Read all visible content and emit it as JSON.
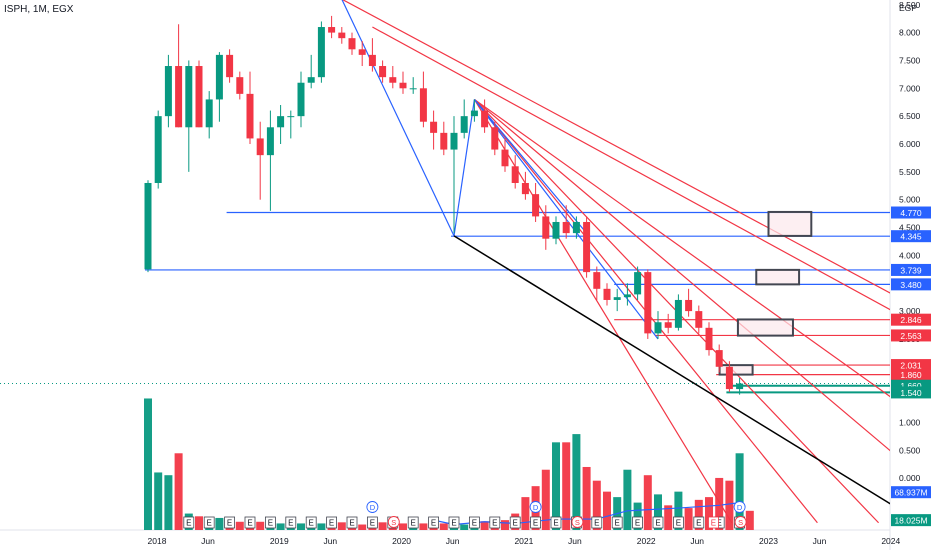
{
  "header": {
    "symbol_line": "ISPH, 1M, EGX"
  },
  "chart_data": {
    "type": "candlestick",
    "currency": "EGP",
    "price_axis_ticks": [
      "8.500",
      "8.000",
      "7.500",
      "7.000",
      "6.500",
      "6.000",
      "5.500",
      "5.000",
      "4.500",
      "4.000",
      "3.500",
      "3.000",
      "2.500",
      "2.000",
      "1.500",
      "1.000",
      "0.500",
      "0.000"
    ],
    "time_axis": [
      {
        "label": "2018",
        "t": 2018.0
      },
      {
        "label": "Jun",
        "t": 2018.417
      },
      {
        "label": "2019",
        "t": 2019.0
      },
      {
        "label": "Jun",
        "t": 2019.417
      },
      {
        "label": "2020",
        "t": 2020.0
      },
      {
        "label": "Jun",
        "t": 2020.417
      },
      {
        "label": "2021",
        "t": 2021.0
      },
      {
        "label": "Jun",
        "t": 2021.417
      },
      {
        "label": "2022",
        "t": 2022.0
      },
      {
        "label": "Jun",
        "t": 2022.417
      },
      {
        "label": "2023",
        "t": 2023.0
      },
      {
        "label": "Jun",
        "t": 2023.417
      },
      {
        "label": "2024",
        "t": 2024.0
      }
    ],
    "candles": [
      {
        "o": 3.75,
        "h": 5.35,
        "l": 3.7,
        "c": 5.3
      },
      {
        "o": 5.3,
        "h": 6.6,
        "l": 5.2,
        "c": 6.5
      },
      {
        "o": 6.5,
        "h": 7.6,
        "l": 6.3,
        "c": 7.4
      },
      {
        "o": 7.4,
        "h": 8.15,
        "l": 6.3,
        "c": 6.3
      },
      {
        "o": 6.3,
        "h": 7.5,
        "l": 5.5,
        "c": 7.4
      },
      {
        "o": 7.4,
        "h": 7.5,
        "l": 6.3,
        "c": 6.3
      },
      {
        "o": 6.3,
        "h": 6.95,
        "l": 6.1,
        "c": 6.8
      },
      {
        "o": 6.8,
        "h": 7.65,
        "l": 6.4,
        "c": 7.6
      },
      {
        "o": 7.6,
        "h": 7.7,
        "l": 7.1,
        "c": 7.2
      },
      {
        "o": 7.2,
        "h": 7.3,
        "l": 6.8,
        "c": 6.9
      },
      {
        "o": 6.9,
        "h": 7.3,
        "l": 6.0,
        "c": 6.1
      },
      {
        "o": 6.1,
        "h": 6.4,
        "l": 5.0,
        "c": 5.8
      },
      {
        "o": 5.8,
        "h": 6.6,
        "l": 4.8,
        "c": 6.3
      },
      {
        "o": 6.3,
        "h": 6.7,
        "l": 6.0,
        "c": 6.5
      },
      {
        "o": 6.5,
        "h": 6.6,
        "l": 6.1,
        "c": 6.5
      },
      {
        "o": 6.5,
        "h": 7.3,
        "l": 6.3,
        "c": 7.1
      },
      {
        "o": 7.1,
        "h": 7.6,
        "l": 7.0,
        "c": 7.2
      },
      {
        "o": 7.2,
        "h": 8.2,
        "l": 7.1,
        "c": 8.1
      },
      {
        "o": 8.1,
        "h": 8.3,
        "l": 7.9,
        "c": 8.0
      },
      {
        "o": 8.0,
        "h": 8.1,
        "l": 7.8,
        "c": 7.9
      },
      {
        "o": 7.9,
        "h": 8.0,
        "l": 7.6,
        "c": 7.7
      },
      {
        "o": 7.7,
        "h": 7.85,
        "l": 7.4,
        "c": 7.6
      },
      {
        "o": 7.6,
        "h": 7.9,
        "l": 7.3,
        "c": 7.4
      },
      {
        "o": 7.4,
        "h": 7.5,
        "l": 7.1,
        "c": 7.2
      },
      {
        "o": 7.2,
        "h": 7.4,
        "l": 7.0,
        "c": 7.1
      },
      {
        "o": 7.1,
        "h": 7.3,
        "l": 6.9,
        "c": 7.0
      },
      {
        "o": 7.0,
        "h": 7.2,
        "l": 6.9,
        "c": 7.0
      },
      {
        "o": 7.0,
        "h": 7.3,
        "l": 6.3,
        "c": 6.4
      },
      {
        "o": 6.4,
        "h": 6.6,
        "l": 5.9,
        "c": 6.2
      },
      {
        "o": 6.2,
        "h": 6.4,
        "l": 5.8,
        "c": 5.9
      },
      {
        "o": 5.9,
        "h": 6.5,
        "l": 4.4,
        "c": 6.2
      },
      {
        "o": 6.2,
        "h": 6.8,
        "l": 6.1,
        "c": 6.5
      },
      {
        "o": 6.5,
        "h": 6.8,
        "l": 6.4,
        "c": 6.6
      },
      {
        "o": 6.6,
        "h": 6.8,
        "l": 6.2,
        "c": 6.3
      },
      {
        "o": 6.3,
        "h": 6.4,
        "l": 5.8,
        "c": 5.9
      },
      {
        "o": 5.9,
        "h": 6.1,
        "l": 5.5,
        "c": 5.6
      },
      {
        "o": 5.6,
        "h": 5.8,
        "l": 5.2,
        "c": 5.3
      },
      {
        "o": 5.3,
        "h": 5.5,
        "l": 5.0,
        "c": 5.1
      },
      {
        "o": 5.1,
        "h": 5.3,
        "l": 4.6,
        "c": 4.7
      },
      {
        "o": 4.7,
        "h": 4.9,
        "l": 4.1,
        "c": 4.3
      },
      {
        "o": 4.3,
        "h": 4.7,
        "l": 4.2,
        "c": 4.6
      },
      {
        "o": 4.6,
        "h": 4.9,
        "l": 4.3,
        "c": 4.4
      },
      {
        "o": 4.4,
        "h": 4.7,
        "l": 4.3,
        "c": 4.6
      },
      {
        "o": 4.6,
        "h": 4.7,
        "l": 3.6,
        "c": 3.7
      },
      {
        "o": 3.7,
        "h": 3.8,
        "l": 3.2,
        "c": 3.4
      },
      {
        "o": 3.4,
        "h": 3.5,
        "l": 3.1,
        "c": 3.2
      },
      {
        "o": 3.2,
        "h": 3.4,
        "l": 3.0,
        "c": 3.25
      },
      {
        "o": 3.25,
        "h": 3.5,
        "l": 3.1,
        "c": 3.3
      },
      {
        "o": 3.3,
        "h": 3.8,
        "l": 3.2,
        "c": 3.7
      },
      {
        "o": 3.7,
        "h": 3.75,
        "l": 2.5,
        "c": 2.6
      },
      {
        "o": 2.6,
        "h": 3.0,
        "l": 2.5,
        "c": 2.8
      },
      {
        "o": 2.8,
        "h": 2.95,
        "l": 2.6,
        "c": 2.7
      },
      {
        "o": 2.7,
        "h": 3.3,
        "l": 2.65,
        "c": 3.2
      },
      {
        "o": 3.2,
        "h": 3.4,
        "l": 2.9,
        "c": 3.0
      },
      {
        "o": 3.0,
        "h": 3.1,
        "l": 2.6,
        "c": 2.7
      },
      {
        "o": 2.7,
        "h": 2.8,
        "l": 2.2,
        "c": 2.3
      },
      {
        "o": 2.3,
        "h": 2.4,
        "l": 1.9,
        "c": 2.0
      },
      {
        "o": 2.0,
        "h": 2.1,
        "l": 1.55,
        "c": 1.6
      },
      {
        "o": 1.6,
        "h": 1.8,
        "l": 1.5,
        "c": 1.7
      }
    ],
    "volume_millions": [
      240,
      105,
      100,
      140,
      30,
      25,
      18,
      22,
      18,
      15,
      22,
      15,
      18,
      12,
      15,
      12,
      18,
      12,
      10,
      14,
      12,
      10,
      12,
      14,
      10,
      12,
      15,
      12,
      10,
      12,
      15,
      10,
      14,
      16,
      12,
      18,
      30,
      60,
      80,
      110,
      160,
      160,
      175,
      115,
      90,
      70,
      60,
      110,
      50,
      100,
      65,
      45,
      70,
      40,
      55,
      60,
      95,
      90,
      140,
      35
    ],
    "volume_ma_points": [
      [
        28,
        18
      ],
      [
        30,
        10
      ],
      [
        33,
        15
      ],
      [
        36,
        12
      ],
      [
        40,
        20
      ],
      [
        44,
        20
      ],
      [
        47,
        35
      ],
      [
        52,
        40
      ],
      [
        56,
        45
      ],
      [
        58,
        50
      ]
    ],
    "price_lines": [
      {
        "value": 4.77,
        "label": "4.770",
        "color": "#2962ff",
        "start_index": 8
      },
      {
        "value": 4.345,
        "label": "4.345",
        "color": "#2962ff",
        "start_index": 30
      },
      {
        "value": 3.739,
        "label": "3.739",
        "color": "#2962ff",
        "start_index": 0
      },
      {
        "value": 3.48,
        "label": "3.480",
        "color": "#2962ff",
        "start_index": 46
      },
      {
        "value": 2.846,
        "label": "2.846",
        "color": "#f23645",
        "start_index": 46
      },
      {
        "value": 2.563,
        "label": "2.563",
        "color": "#f23645",
        "start_index": 50
      },
      {
        "value": 2.031,
        "label": "2.031",
        "color": "#f23645",
        "start_index": 56
      },
      {
        "value": 1.86,
        "label": "1.860",
        "color": "#f23645",
        "start_index": 56
      },
      {
        "value": 1.66,
        "label": "1.660",
        "color": "#089981",
        "start_index": 57
      },
      {
        "value": 1.54,
        "label": "1.540",
        "color": "#089981",
        "start_index": 57
      }
    ],
    "volume_labels": [
      {
        "label": "68.937M",
        "color": "#2962ff",
        "value": 69
      },
      {
        "label": "18.025M",
        "color": "#089981",
        "value": 18
      }
    ],
    "boxes": [
      {
        "t0": 2023.0,
        "t1": 2023.35,
        "p0": 4.35,
        "p1": 4.78
      },
      {
        "t0": 2022.9,
        "t1": 2023.25,
        "p0": 3.48,
        "p1": 3.74
      },
      {
        "t0": 2022.75,
        "t1": 2023.2,
        "p0": 2.56,
        "p1": 2.85
      },
      {
        "t0": 2022.6,
        "t1": 2022.87,
        "p0": 1.86,
        "p1": 2.03
      }
    ],
    "trend_lines_blue": [
      [
        [
          19,
          8.6
        ],
        [
          30,
          4.35
        ]
      ],
      [
        [
          30,
          4.35
        ],
        [
          32,
          6.8
        ]
      ],
      [
        [
          32,
          6.8
        ],
        [
          43,
          4.4
        ]
      ],
      [
        [
          32,
          6.8
        ],
        [
          50,
          2.5
        ]
      ]
    ],
    "fan_origins": [
      {
        "from": [
          19,
          8.6
        ],
        "to": [
          [
            2024.1,
            3.2
          ]
        ]
      },
      {
        "from": [
          22,
          8.1
        ],
        "to": [
          [
            2024.1,
            2.9
          ]
        ]
      },
      {
        "from": [
          32,
          6.8
        ],
        "to": [
          [
            2023.9,
            -0.8
          ],
          [
            2024.1,
            1.3
          ],
          [
            2024.1,
            0.3
          ],
          [
            2023.4,
            -0.8
          ],
          [
            2022.7,
            -0.8
          ]
        ]
      }
    ],
    "black_line": [
      [
        30,
        4.35
      ],
      [
        2024.1,
        -0.6
      ]
    ],
    "event_markers": [
      {
        "label": "D",
        "i": 22,
        "color": "#2962ff"
      },
      {
        "label": "D",
        "i": 38,
        "color": "#2962ff"
      },
      {
        "label": "D",
        "i": 58,
        "color": "#2962ff"
      },
      {
        "label": "S",
        "i": 24,
        "color": "#f23645"
      },
      {
        "label": "S",
        "i": 42,
        "color": "#f23645"
      },
      {
        "label": "S",
        "i": 58,
        "color": "#f23645"
      }
    ],
    "earnings_indices": [
      4,
      6,
      8,
      10,
      12,
      14,
      16,
      18,
      20,
      22,
      24,
      26,
      28,
      30,
      32,
      34,
      36,
      38,
      40,
      42,
      44,
      46,
      48,
      50,
      52,
      54,
      56,
      58
    ],
    "earnings_future": {
      "label": "E",
      "t": 2022.55
    }
  },
  "colors": {
    "up": "#089981",
    "down": "#f23645",
    "blue": "#2962ff",
    "axis_text": "#131722"
  }
}
